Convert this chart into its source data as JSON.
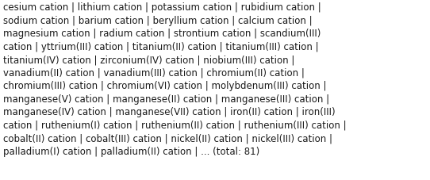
{
  "lines": [
    "cesium cation │ lithium cation │ potassium cation │ rubidium cation │",
    "sodium cation │ barium cation │ beryllium cation │ calcium cation │",
    "magnesium cation │ radium cation │ strontium cation │ scandium(III)",
    "cation │ yttrium(III) cation │ titanium(II) cation │ titanium(III) cation │",
    "titanium(IV) cation │ zirconium(IV) cation │ niobium(III) cation │",
    "vanadium(II) cation │ vanadium(III) cation │ chromium(II) cation │",
    "chromium(III) cation │ chromium(VI) cation │ molybdenum(III) cation │",
    "manganese(V) cation │ manganese(II) cation │ manganese(III) cation │",
    "manganese(IV) cation │ manganese(VII) cation │ iron(II) cation │ iron(III)",
    "cation │ ruthenium(I) cation │ ruthenium(II) cation │ ruthenium(III) cation │",
    "cobalt(II) cation │ cobalt(III) cation │ nickel(II) cation │ nickel(III) cation │",
    "palladium(I) cation │ palladium(II) cation │ ... (total: 81)"
  ],
  "separator_char": " | ",
  "text_color": "#1a1a1a",
  "bg_color": "#ffffff",
  "font_size": 8.5,
  "figsize": [
    5.42,
    2.28
  ],
  "dpi": 100
}
